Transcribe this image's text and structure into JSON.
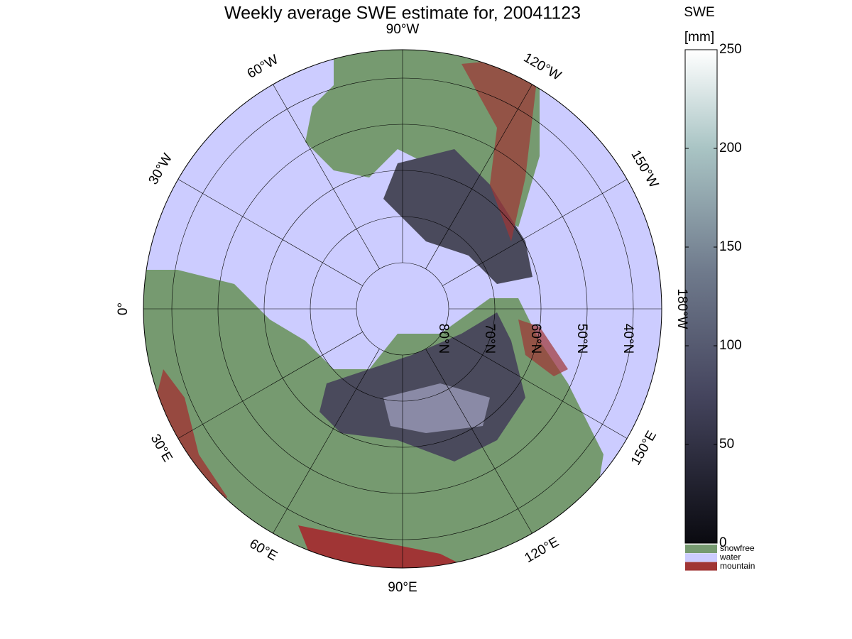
{
  "title": "Weekly average SWE estimate for, 20041123",
  "map": {
    "meridians": [
      {
        "value": -90,
        "label": "90°W"
      },
      {
        "value": -60,
        "label": "60°W"
      },
      {
        "value": -30,
        "label": "30°W"
      },
      {
        "value": 0,
        "label": "0°"
      },
      {
        "value": 30,
        "label": "30°E"
      },
      {
        "value": 60,
        "label": "60°E"
      },
      {
        "value": 90,
        "label": "90°E"
      },
      {
        "value": 120,
        "label": "120°E"
      },
      {
        "value": 150,
        "label": "150°E"
      },
      {
        "value": 180,
        "label": "180°W"
      },
      {
        "value": -150,
        "label": "150°W"
      },
      {
        "value": -120,
        "label": "120°W"
      }
    ],
    "parallels": [
      {
        "value": 80,
        "label": "80°N"
      },
      {
        "value": 70,
        "label": "70°N"
      },
      {
        "value": 60,
        "label": "60°N"
      },
      {
        "value": 50,
        "label": "50°N"
      },
      {
        "value": 40,
        "label": "40°N"
      }
    ]
  },
  "colorbar": {
    "label": "SWE",
    "unit": "[mm]",
    "lim": [
      0,
      250
    ],
    "ticks": [
      0,
      50,
      100,
      150,
      200,
      250
    ]
  },
  "legend": [
    {
      "name": "snowfree",
      "color": "#769a70"
    },
    {
      "name": "water",
      "color": "#ccccff"
    },
    {
      "name": "mountain",
      "color": "#a03535"
    }
  ]
}
